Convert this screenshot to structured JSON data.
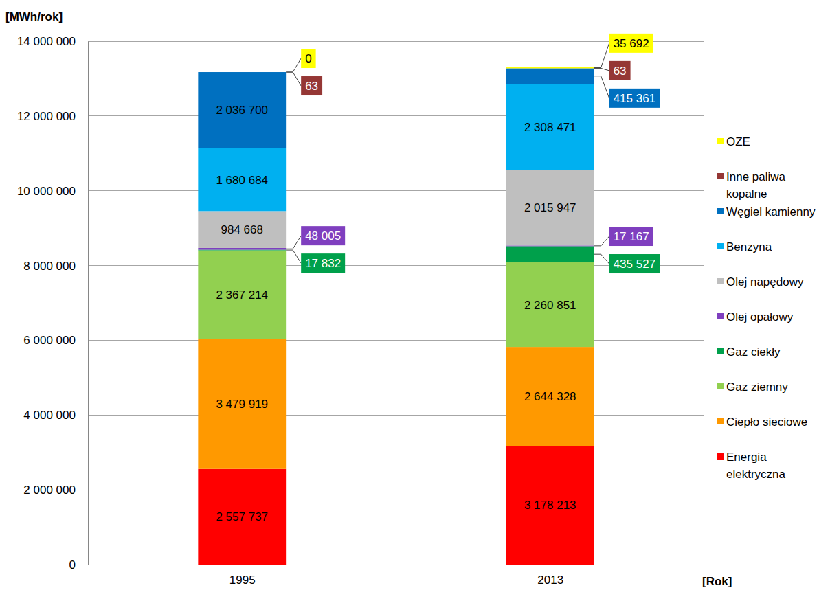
{
  "chart_data": {
    "type": "bar",
    "stacked": true,
    "data_labels": true,
    "grid": true,
    "legend": "right",
    "y_label": "[MWh/rok]",
    "x_label": "[Rok]",
    "categories": [
      "1995",
      "2013"
    ],
    "ylim": [
      0,
      14000000
    ],
    "yticks": [
      0,
      {
        "value": 2000000,
        "label": "2 000 000"
      },
      {
        "value": 4000000,
        "label": "4 000 000"
      },
      {
        "value": 6000000,
        "label": "6 000 000"
      },
      {
        "value": 8000000,
        "label": "8 000 000"
      },
      {
        "value": 10000000,
        "label": "10 000 000"
      },
      {
        "value": 12000000,
        "label": "12 000 000"
      },
      {
        "value": 14000000,
        "label": "14 000 000"
      }
    ],
    "series": [
      {
        "name": "Energia elektryczna",
        "color": "#ff0000",
        "values": [
          2557737,
          3178213
        ],
        "value_labels": [
          "2 557 737",
          "3 178 213"
        ]
      },
      {
        "name": "Ciepło sieciowe",
        "color": "#ff9900",
        "values": [
          3479919,
          2644328
        ],
        "value_labels": [
          "3 479 919",
          "2 644 328"
        ]
      },
      {
        "name": "Gaz ziemny",
        "color": "#92d050",
        "values": [
          2367214,
          2260851
        ],
        "value_labels": [
          "2 367 214",
          "2 260 851"
        ]
      },
      {
        "name": "Gaz ciekły",
        "color": "#00a04b",
        "values": [
          17832,
          435527
        ],
        "value_labels": [
          "17 832",
          "435 527"
        ]
      },
      {
        "name": "Olej opałowy",
        "color": "#7f3fbf",
        "values": [
          48005,
          17167
        ],
        "value_labels": [
          "48 005",
          "17 167"
        ]
      },
      {
        "name": "Olej napędowy",
        "color": "#bfbfbf",
        "values": [
          984668,
          2015947
        ],
        "value_labels": [
          "984 668",
          "2 015 947"
        ]
      },
      {
        "name": "Benzyna",
        "color": "#00b0f0",
        "values": [
          1680684,
          2308471
        ],
        "value_labels": [
          "1 680 684",
          "2 308 471"
        ]
      },
      {
        "name": "Węgiel kamienny",
        "color": "#0070c0",
        "values": [
          2036700,
          415361
        ],
        "value_labels": [
          "2 036 700",
          "415 361"
        ]
      },
      {
        "name": "Inne paliwa kopalne",
        "color": "#953735",
        "values": [
          63,
          63
        ],
        "value_labels": [
          "63",
          "63"
        ]
      },
      {
        "name": "OZE",
        "color": "#ffff00",
        "values": [
          0,
          35692
        ],
        "value_labels": [
          "0",
          "35 692"
        ]
      }
    ]
  }
}
